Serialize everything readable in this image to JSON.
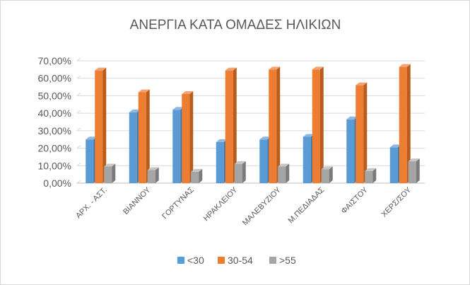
{
  "chart_data": {
    "type": "bar",
    "title": "ΑΝΕΡΓΙΑ ΚΑΤΑ ΟΜΑΔΕΣ ΗΛΙΚΙΩΝ",
    "categories": [
      "ΑΡΧ. - ΑΣΤ.",
      "ΒΙΑΝΝΟΥ",
      "ΓΟΡΤΥΝΑΣ",
      "ΗΡΑΚΛΕΙΟΥ",
      "ΜΑΛΕΒΥΖΙΟΥ",
      "Μ.ΠΕΔΙΑΔΑΣ",
      "ΦΑΙΣΤΟΥ",
      "ΧΕΡΣ/ΣΟΥ"
    ],
    "series": [
      {
        "name": "<30",
        "values": [
          25.0,
          40.5,
          42.0,
          23.5,
          25.0,
          26.5,
          36.5,
          20.5
        ]
      },
      {
        "name": "30-54",
        "values": [
          64.5,
          52.0,
          51.0,
          64.5,
          65.0,
          65.0,
          56.0,
          66.5
        ]
      },
      {
        "name": ">55",
        "values": [
          9.5,
          7.5,
          6.5,
          11.0,
          9.5,
          8.0,
          7.0,
          12.5
        ]
      }
    ],
    "yticks": [
      "0,00%",
      "10,00%",
      "20,00%",
      "30,00%",
      "40,00%",
      "50,00%",
      "60,00%",
      "70,00%"
    ],
    "ylim": [
      0,
      70
    ],
    "grid": true,
    "legend": "bottom",
    "colors": {
      "<30": {
        "front": "#5b9bd5",
        "side": "#3f76a8",
        "top": "#8cb8e2"
      },
      "30-54": {
        "front": "#ed7d31",
        "side": "#b85c1d",
        "top": "#f3a270"
      },
      ">55": {
        "front": "#a5a5a5",
        "side": "#7b7b7b",
        "top": "#c6c6c6"
      }
    }
  }
}
